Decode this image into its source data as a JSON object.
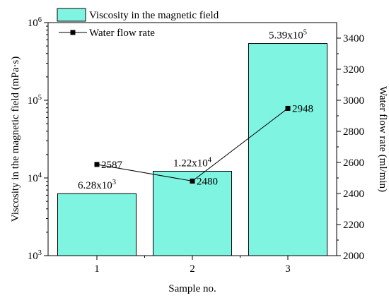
{
  "chart_data": {
    "type": "bar",
    "categories": [
      "1",
      "2",
      "3"
    ],
    "xlabel": "Sample no.",
    "series": [
      {
        "name": "Viscosity in the magnetic field",
        "kind": "bar",
        "axis": "left",
        "values": [
          6280,
          12200,
          539000
        ],
        "labels": [
          {
            "mantissa": "6.28x10",
            "exp": "3"
          },
          {
            "mantissa": "1.22x10",
            "exp": "4"
          },
          {
            "mantissa": "5.39x10",
            "exp": "5"
          }
        ],
        "color": "#7ff5e1"
      },
      {
        "name": "Water flow rate",
        "kind": "line",
        "axis": "right",
        "values": [
          2587,
          2480,
          2948
        ],
        "labels": [
          "2587",
          "2480",
          "2948"
        ],
        "color": "#000000"
      }
    ],
    "left_axis": {
      "label": "Viscosity in the magnetic field (mPa·s)",
      "scale": "log",
      "ylim": [
        1000,
        1000000
      ],
      "ticks": [
        {
          "mantissa": "10",
          "exp": "3",
          "value": 1000
        },
        {
          "mantissa": "10",
          "exp": "4",
          "value": 10000
        },
        {
          "mantissa": "10",
          "exp": "5",
          "value": 100000
        },
        {
          "mantissa": "10",
          "exp": "6",
          "value": 1000000
        }
      ]
    },
    "right_axis": {
      "label": "Water flow rate (ml/min)",
      "scale": "linear",
      "ylim": [
        2000,
        3500
      ],
      "ticks": [
        "2000",
        "2200",
        "2400",
        "2600",
        "2800",
        "3000",
        "3200",
        "3400"
      ]
    },
    "legend": {
      "placement": "top-left"
    },
    "grid": false
  }
}
